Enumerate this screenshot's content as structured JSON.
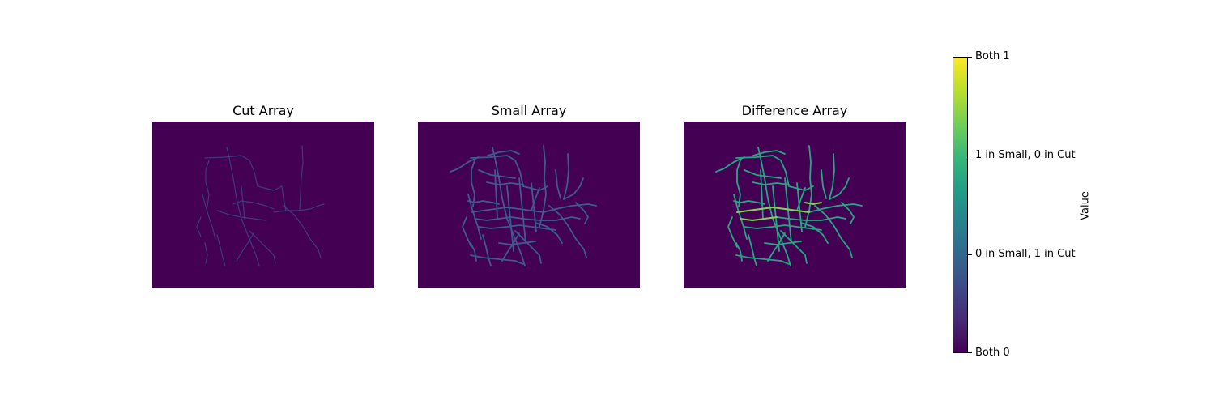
{
  "chart_data": [
    {
      "type": "heatmap",
      "title": "Cut Array",
      "background_color": "#440154",
      "line_color": "#3b4f8a",
      "line_opacity": 0.75
    },
    {
      "type": "heatmap",
      "title": "Small Array",
      "background_color": "#440154",
      "line_color": "#3e5b8f",
      "line_opacity": 1.0
    },
    {
      "type": "heatmap",
      "title": "Difference Array",
      "background_color": "#440154",
      "line_color": "#24a884",
      "highlight_color": "#7fd34e",
      "line_opacity": 1.0
    }
  ],
  "colorbar": {
    "label": "Value",
    "ticks": [
      {
        "label": "Both 1",
        "value": 3
      },
      {
        "label": "1 in Small, 0 in Cut",
        "value": 2
      },
      {
        "label": "0 in Small, 1 in Cut",
        "value": 1
      },
      {
        "label": "Both 0",
        "value": 0
      }
    ],
    "range": [
      0,
      3
    ],
    "colormap": "viridis"
  }
}
